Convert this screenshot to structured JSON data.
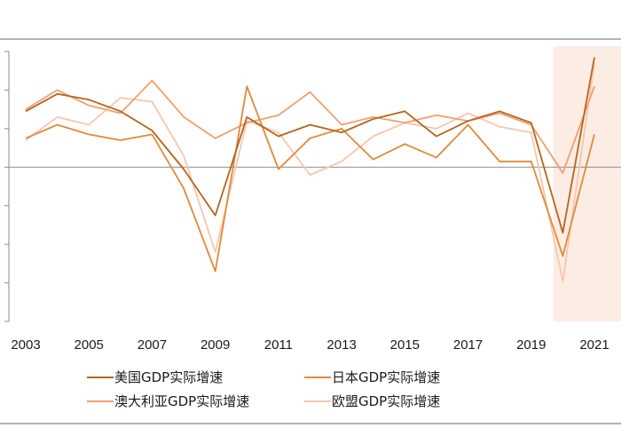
{
  "chart_data": {
    "type": "line",
    "title": "",
    "xlabel": "",
    "ylabel": "",
    "x": [
      2003,
      2004,
      2005,
      2006,
      2007,
      2008,
      2009,
      2010,
      2011,
      2012,
      2013,
      2014,
      2015,
      2016,
      2017,
      2018,
      2019,
      2020,
      2021
    ],
    "x_tick_labels": [
      "2003",
      "2005",
      "2007",
      "2009",
      "2011",
      "2013",
      "2015",
      "2017",
      "2019",
      "2021"
    ],
    "ylim": [
      -8,
      6
    ],
    "zero_line": true,
    "highlight_region": {
      "from": 2019.7,
      "to": 2021
    },
    "series": [
      {
        "name": "美国GDP实际增速",
        "color": "#b5651d",
        "values": [
          2.9,
          3.8,
          3.5,
          2.9,
          1.9,
          -0.1,
          -2.5,
          2.6,
          1.6,
          2.2,
          1.8,
          2.5,
          2.9,
          1.6,
          2.4,
          2.9,
          2.3,
          -3.4,
          5.7
        ]
      },
      {
        "name": "日本GDP实际增速",
        "color": "#e08a3c",
        "values": [
          1.5,
          2.2,
          1.7,
          1.4,
          1.7,
          -1.1,
          -5.4,
          4.2,
          -0.1,
          1.5,
          2.0,
          0.4,
          1.2,
          0.5,
          2.2,
          0.3,
          0.3,
          -4.6,
          1.7
        ]
      },
      {
        "name": "澳大利亚GDP实际增速",
        "color": "#f0a070",
        "values": [
          3.0,
          4.0,
          3.2,
          2.8,
          4.5,
          2.6,
          1.5,
          2.3,
          2.7,
          3.9,
          2.2,
          2.6,
          2.3,
          2.7,
          2.4,
          2.8,
          2.2,
          -0.3,
          4.2
        ]
      },
      {
        "name": "欧盟GDP实际增速",
        "color": "#f7c6ae",
        "values": [
          1.4,
          2.6,
          2.2,
          3.6,
          3.4,
          0.6,
          -4.4,
          2.4,
          1.8,
          -0.4,
          0.3,
          1.6,
          2.3,
          2.0,
          2.8,
          2.1,
          1.8,
          -5.9,
          5.4
        ]
      }
    ],
    "legend": {
      "placement": "bottom",
      "columns": 2
    },
    "grid": false
  }
}
